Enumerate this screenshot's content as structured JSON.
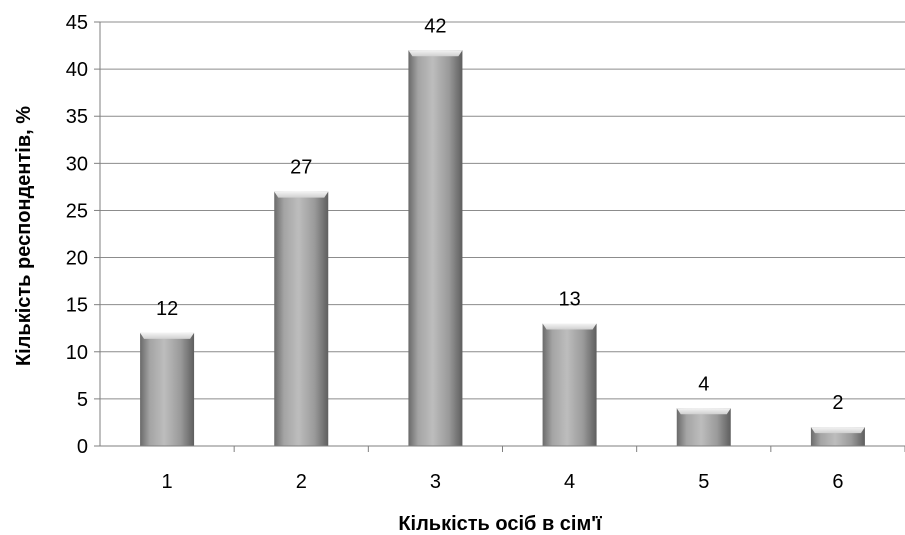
{
  "chart_data": {
    "type": "bar",
    "categories": [
      "1",
      "2",
      "3",
      "4",
      "5",
      "6"
    ],
    "values": [
      12,
      27,
      42,
      13,
      4,
      2
    ],
    "data_labels": [
      "12",
      "27",
      "42",
      "13",
      "4",
      "2"
    ],
    "yticks": [
      "0",
      "5",
      "10",
      "15",
      "20",
      "25",
      "30",
      "35",
      "40",
      "45"
    ],
    "xlabel": "Кількість осіб в сім'ї",
    "ylabel": "Кількість респондентів, %",
    "ylim": [
      0,
      45
    ],
    "grid": true,
    "legend": "none"
  },
  "colors": {
    "bar": "#9e9e9e",
    "grid": "#8c8c8c",
    "axis": "#7f7f7f",
    "text": "#000000"
  }
}
